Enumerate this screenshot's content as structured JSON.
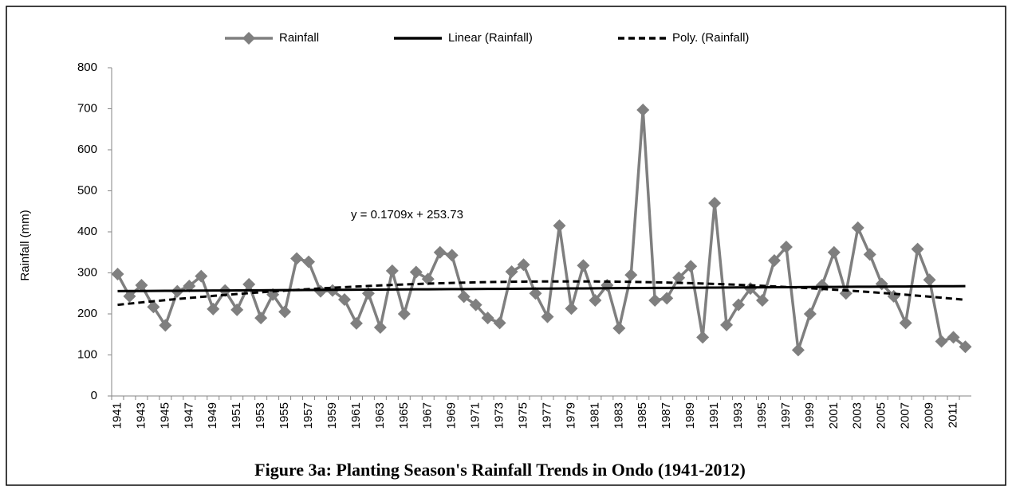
{
  "chart_data": {
    "type": "line",
    "title": "Figure 3a: Planting Season's Rainfall Trends in Ondo (1941-2012)",
    "y_label": "Rainfall (mm)",
    "annotation": "y = 0.1709x + 253.73",
    "categories": [
      "1941",
      null,
      "1943",
      null,
      "1945",
      null,
      "1947",
      null,
      "1949",
      null,
      "1951",
      null,
      "1953",
      null,
      "1955",
      null,
      "1957",
      null,
      "1959",
      null,
      "1961",
      null,
      "1963",
      null,
      "1965",
      null,
      "1967",
      null,
      "1969",
      null,
      "1971",
      null,
      "1973",
      null,
      "1975",
      null,
      "1977",
      null,
      "1979",
      null,
      "1981",
      null,
      "1983",
      null,
      "1985",
      null,
      "1987",
      null,
      "1989",
      null,
      "1991",
      null,
      "1993",
      null,
      "1995",
      null,
      "1997",
      null,
      "1999",
      null,
      "2001",
      null,
      "2003",
      null,
      "2005",
      null,
      "2007",
      null,
      "2009",
      null,
      "2011",
      null
    ],
    "series": [
      {
        "name": "Rainfall",
        "color": "#7f7f7f",
        "values": [
          297,
          243,
          270,
          217,
          172,
          255,
          268,
          292,
          212,
          257,
          210,
          272,
          190,
          247,
          205,
          335,
          327,
          255,
          257,
          235,
          177,
          250,
          167,
          305,
          200,
          302,
          285,
          350,
          343,
          242,
          222,
          190,
          178,
          303,
          320,
          250,
          193,
          415,
          213,
          318,
          233,
          270,
          165,
          295,
          697,
          233,
          238,
          288,
          316,
          143,
          470,
          173,
          222,
          262,
          233,
          330,
          363,
          112,
          200,
          270,
          350,
          250,
          410,
          345,
          273,
          243,
          178,
          358,
          283,
          133,
          143,
          120
        ]
      }
    ],
    "trendlines": [
      {
        "name": "Linear (Rainfall)",
        "kind": "linear",
        "color": "#000000",
        "dashed": false
      },
      {
        "name": "Poly. (Rainfall)",
        "kind": "poly",
        "order": 2,
        "color": "#000000",
        "dashed": true
      }
    ],
    "ylim": [
      0,
      800
    ],
    "yticks": [
      0,
      100,
      200,
      300,
      400,
      500,
      600,
      700,
      800
    ],
    "grid": false,
    "legend": "top"
  }
}
